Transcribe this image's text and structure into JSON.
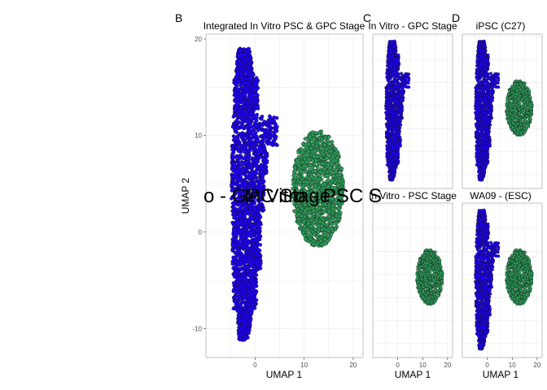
{
  "figure": {
    "panel_letters": [
      "B",
      "C",
      "D"
    ],
    "overlay_text": "o - GPC Stage",
    "overlay_text_2": "In Vitro - PSC S"
  },
  "colors": {
    "gpc": "#1f00ff",
    "psc": "#2e9e5b",
    "outline": "#111111"
  },
  "chart_data": [
    {
      "type": "scatter",
      "panel": "B",
      "title": "Integrated In Vitro PSC & GPC Stage",
      "xlabel": "UMAP 1",
      "ylabel": "UMAP 2",
      "xlim": [
        -10,
        22
      ],
      "ylim": [
        -13,
        20.5
      ],
      "xticks": [
        0,
        10,
        20
      ],
      "yticks": [
        -10,
        0,
        10,
        20
      ],
      "grid": true,
      "series": [
        {
          "color": "#1f00ff",
          "cluster": "gpc"
        },
        {
          "color": "#2e9e5b",
          "cluster": "psc"
        }
      ]
    },
    {
      "type": "scatter",
      "panel": "C",
      "title": "In Vitro - GPC Stage",
      "xlim": [
        -10,
        22
      ],
      "ylim": [
        -13,
        20.5
      ],
      "xticks": [],
      "yticks": [],
      "grid": true,
      "series": [
        {
          "color": "#1f00ff",
          "cluster": "gpc"
        }
      ]
    },
    {
      "type": "scatter",
      "panel": "D",
      "title": "iPSC (C27)",
      "xlim": [
        -10,
        22
      ],
      "ylim": [
        -13,
        20.5
      ],
      "grid": true,
      "series": [
        {
          "color": "#1f00ff",
          "cluster": "gpc"
        },
        {
          "color": "#2e9e5b",
          "cluster": "psc"
        }
      ]
    },
    {
      "type": "scatter",
      "panel": "C-bottom",
      "title": "In Vitro - PSC Stage",
      "xlabel": "UMAP 1",
      "xlim": [
        -10,
        22
      ],
      "ylim": [
        -13,
        20.5
      ],
      "xticks": [
        0,
        10,
        20
      ],
      "grid": true,
      "series": [
        {
          "color": "#2e9e5b",
          "cluster": "psc"
        }
      ]
    },
    {
      "type": "scatter",
      "panel": "D-bottom",
      "title": "WA09 - (ESC)",
      "xlabel": "UMAP 1",
      "xlim": [
        -10,
        22
      ],
      "ylim": [
        -13,
        20.5
      ],
      "xticks": [
        0,
        10,
        20
      ],
      "grid": true,
      "series": [
        {
          "color": "#1f00ff",
          "cluster": "gpc"
        },
        {
          "color": "#2e9e5b",
          "cluster": "psc"
        }
      ]
    }
  ]
}
